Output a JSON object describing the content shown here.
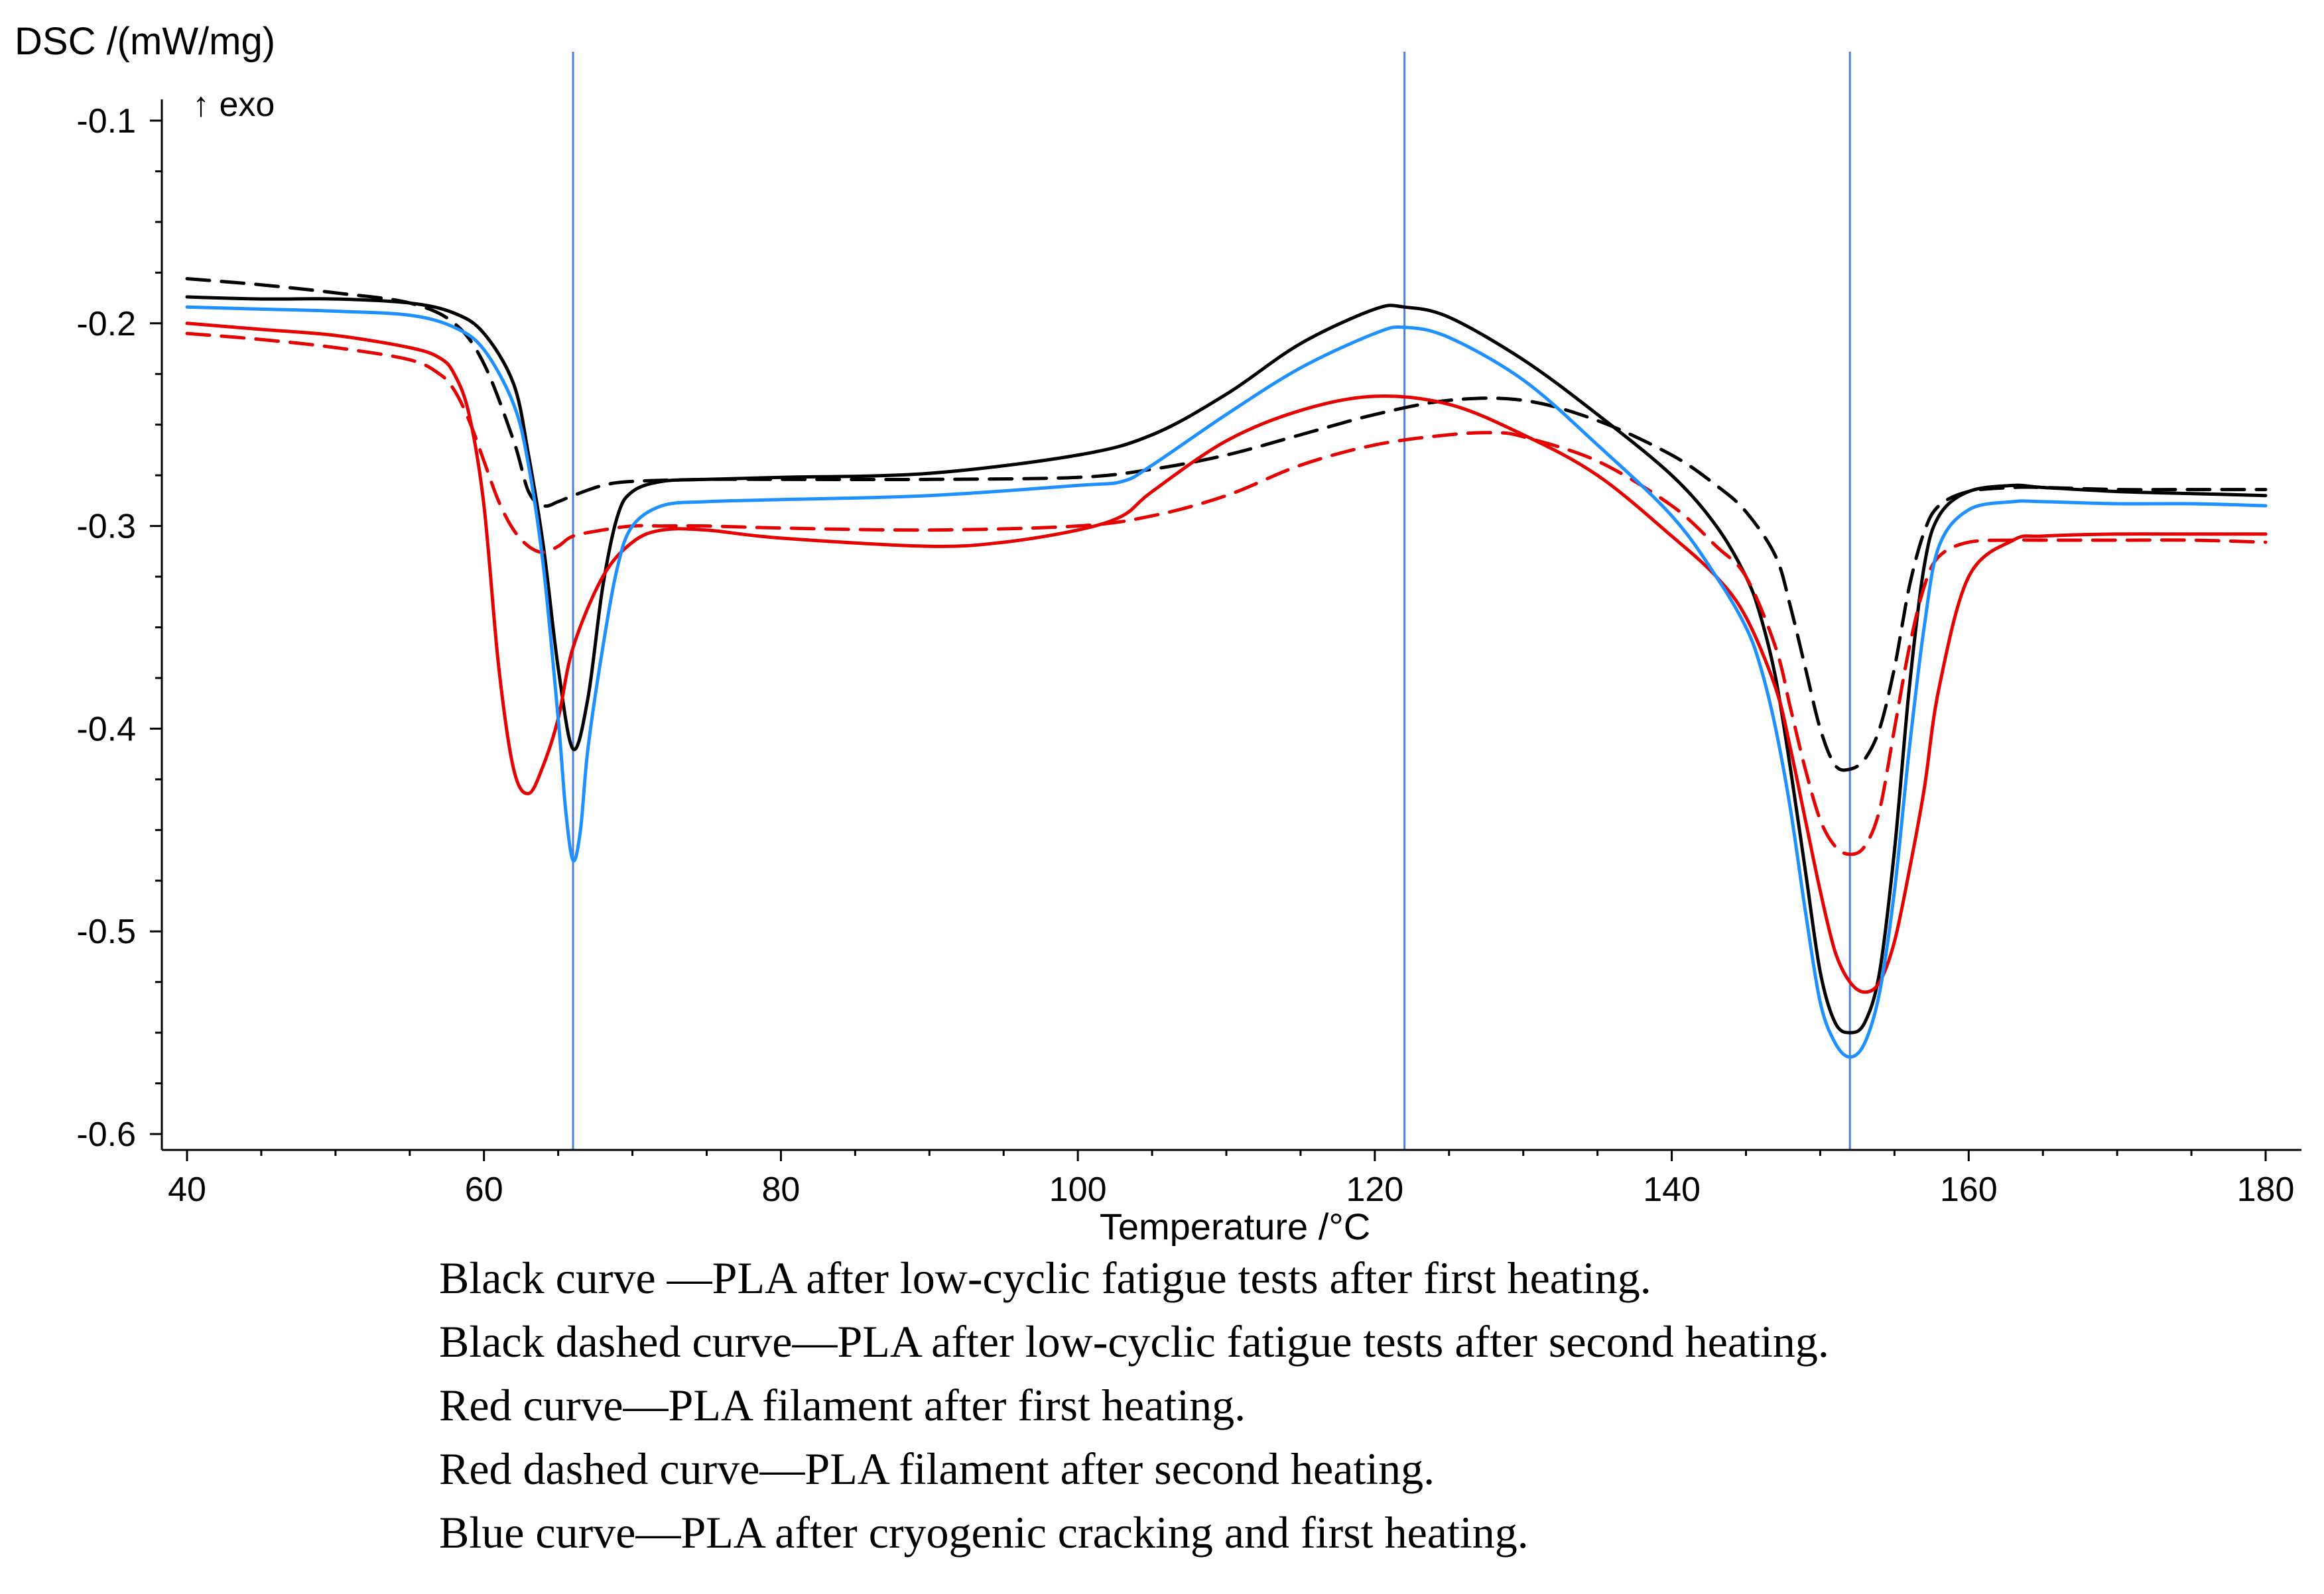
{
  "chart_data": {
    "type": "line",
    "ylabel": "DSC /(mW/mg)",
    "exo_label": "↑ exo",
    "xlabel": "Temperature /°C",
    "xlim": [
      40,
      180
    ],
    "ylim": [
      -0.6,
      -0.1
    ],
    "x_ticks": [
      40,
      60,
      80,
      100,
      120,
      140,
      160,
      180
    ],
    "y_ticks": [
      -0.1,
      -0.2,
      -0.3,
      -0.4,
      -0.5,
      -0.6
    ],
    "x_tick_labels": [
      "40",
      "60",
      "80",
      "100",
      "120",
      "140",
      "160",
      "180"
    ],
    "y_tick_labels": [
      "-0.1",
      "-0.2",
      "-0.3",
      "-0.4",
      "-0.5",
      "-0.6"
    ],
    "vertical_markers": [
      66,
      122,
      152
    ],
    "series": [
      {
        "name": "Black curve",
        "color": "#000000",
        "dash": false,
        "x": [
          40,
          45,
          50,
          55,
          58,
          60,
          62,
          63,
          64,
          65,
          66,
          67,
          68,
          69,
          70,
          72,
          75,
          80,
          90,
          100,
          105,
          110,
          115,
          120,
          122,
          125,
          130,
          135,
          140,
          143,
          145,
          146,
          147,
          148,
          149,
          150,
          151,
          152,
          153,
          154,
          155,
          156,
          157,
          158,
          160,
          163,
          165,
          170,
          175,
          180
        ],
        "y": [
          -0.187,
          -0.188,
          -0.188,
          -0.19,
          -0.195,
          -0.205,
          -0.23,
          -0.265,
          -0.31,
          -0.37,
          -0.41,
          -0.385,
          -0.33,
          -0.295,
          -0.283,
          -0.278,
          -0.277,
          -0.276,
          -0.274,
          -0.265,
          -0.255,
          -0.235,
          -0.21,
          -0.193,
          -0.192,
          -0.197,
          -0.218,
          -0.245,
          -0.275,
          -0.3,
          -0.325,
          -0.345,
          -0.375,
          -0.42,
          -0.47,
          -0.52,
          -0.545,
          -0.55,
          -0.545,
          -0.52,
          -0.46,
          -0.38,
          -0.32,
          -0.295,
          -0.283,
          -0.28,
          -0.281,
          -0.283,
          -0.284,
          -0.285
        ]
      },
      {
        "name": "Black dashed curve",
        "color": "#000000",
        "dash": true,
        "x": [
          40,
          45,
          50,
          55,
          58,
          60,
          62,
          63,
          64,
          65,
          66,
          68,
          70,
          75,
          80,
          90,
          100,
          105,
          110,
          115,
          120,
          125,
          130,
          135,
          140,
          143,
          145,
          147,
          148,
          149,
          150,
          151,
          152,
          153,
          154,
          155,
          156,
          157,
          158,
          160,
          163,
          165,
          170,
          175,
          180
        ],
        "y": [
          -0.178,
          -0.181,
          -0.185,
          -0.19,
          -0.2,
          -0.22,
          -0.258,
          -0.283,
          -0.29,
          -0.288,
          -0.285,
          -0.28,
          -0.278,
          -0.277,
          -0.277,
          -0.277,
          -0.276,
          -0.272,
          -0.265,
          -0.255,
          -0.245,
          -0.238,
          -0.238,
          -0.248,
          -0.265,
          -0.28,
          -0.293,
          -0.315,
          -0.34,
          -0.37,
          -0.4,
          -0.418,
          -0.42,
          -0.415,
          -0.4,
          -0.37,
          -0.33,
          -0.303,
          -0.29,
          -0.283,
          -0.281,
          -0.281,
          -0.282,
          -0.282,
          -0.282
        ]
      },
      {
        "name": "Red curve",
        "color": "#e60000",
        "dash": false,
        "x": [
          40,
          45,
          50,
          55,
          57,
          58,
          59,
          60,
          61,
          62,
          63,
          64,
          65,
          66,
          68,
          70,
          72,
          75,
          80,
          90,
          95,
          100,
          103,
          105,
          110,
          115,
          120,
          125,
          130,
          135,
          140,
          143,
          145,
          147,
          148,
          149,
          150,
          151,
          152,
          153,
          154,
          155,
          156,
          157,
          158,
          160,
          163,
          165,
          170,
          175,
          180
        ],
        "y": [
          -0.2,
          -0.203,
          -0.206,
          -0.212,
          -0.217,
          -0.225,
          -0.245,
          -0.29,
          -0.37,
          -0.42,
          -0.432,
          -0.418,
          -0.395,
          -0.36,
          -0.325,
          -0.308,
          -0.302,
          -0.302,
          -0.306,
          -0.31,
          -0.308,
          -0.302,
          -0.295,
          -0.283,
          -0.258,
          -0.243,
          -0.236,
          -0.24,
          -0.255,
          -0.275,
          -0.305,
          -0.325,
          -0.345,
          -0.38,
          -0.41,
          -0.445,
          -0.48,
          -0.51,
          -0.525,
          -0.53,
          -0.525,
          -0.505,
          -0.47,
          -0.43,
          -0.38,
          -0.325,
          -0.307,
          -0.305,
          -0.304,
          -0.304,
          -0.304
        ]
      },
      {
        "name": "Red dashed curve",
        "color": "#e60000",
        "dash": true,
        "x": [
          40,
          45,
          50,
          55,
          57,
          58,
          59,
          60,
          61,
          62,
          63,
          64,
          65,
          66,
          68,
          70,
          72,
          75,
          80,
          90,
          100,
          105,
          110,
          115,
          120,
          125,
          128,
          130,
          135,
          140,
          143,
          145,
          147,
          148,
          149,
          150,
          151,
          152,
          153,
          154,
          155,
          156,
          157,
          158,
          160,
          163,
          165,
          170,
          175,
          180
        ],
        "y": [
          -0.205,
          -0.208,
          -0.212,
          -0.218,
          -0.225,
          -0.233,
          -0.248,
          -0.268,
          -0.288,
          -0.302,
          -0.31,
          -0.313,
          -0.31,
          -0.305,
          -0.302,
          -0.3,
          -0.3,
          -0.3,
          -0.301,
          -0.302,
          -0.3,
          -0.295,
          -0.285,
          -0.27,
          -0.26,
          -0.255,
          -0.254,
          -0.256,
          -0.268,
          -0.29,
          -0.31,
          -0.325,
          -0.36,
          -0.39,
          -0.42,
          -0.445,
          -0.458,
          -0.462,
          -0.458,
          -0.44,
          -0.4,
          -0.36,
          -0.33,
          -0.315,
          -0.308,
          -0.307,
          -0.307,
          -0.307,
          -0.307,
          -0.308
        ]
      },
      {
        "name": "Blue curve",
        "color": "#1e90ff",
        "dash": false,
        "x": [
          40,
          45,
          50,
          55,
          58,
          60,
          62,
          63,
          64,
          65,
          65.5,
          66,
          66.5,
          67,
          68,
          69,
          70,
          72,
          75,
          80,
          90,
          100,
          103,
          105,
          110,
          115,
          120,
          122,
          125,
          130,
          135,
          140,
          143,
          145,
          146,
          147,
          148,
          149,
          150,
          151,
          152,
          153,
          154,
          155,
          156,
          157,
          158,
          160,
          163,
          165,
          170,
          175,
          180
        ],
        "y": [
          -0.192,
          -0.193,
          -0.194,
          -0.196,
          -0.202,
          -0.213,
          -0.24,
          -0.27,
          -0.32,
          -0.395,
          -0.44,
          -0.465,
          -0.45,
          -0.41,
          -0.36,
          -0.32,
          -0.3,
          -0.29,
          -0.288,
          -0.287,
          -0.285,
          -0.28,
          -0.278,
          -0.27,
          -0.245,
          -0.222,
          -0.205,
          -0.202,
          -0.207,
          -0.228,
          -0.26,
          -0.295,
          -0.325,
          -0.35,
          -0.37,
          -0.4,
          -0.44,
          -0.49,
          -0.535,
          -0.555,
          -0.562,
          -0.555,
          -0.53,
          -0.48,
          -0.41,
          -0.35,
          -0.31,
          -0.292,
          -0.288,
          -0.288,
          -0.289,
          -0.289,
          -0.29
        ]
      }
    ]
  },
  "legend": {
    "lines": [
      "Black curve —PLA after low-cyclic fatigue tests after first heating.",
      "Black dashed curve—PLA after low-cyclic fatigue tests after second heating.",
      "Red curve—PLA filament after first heating.",
      "Red dashed curve—PLA filament after second heating.",
      "Blue curve—PLA after cryogenic cracking and first heating."
    ]
  }
}
